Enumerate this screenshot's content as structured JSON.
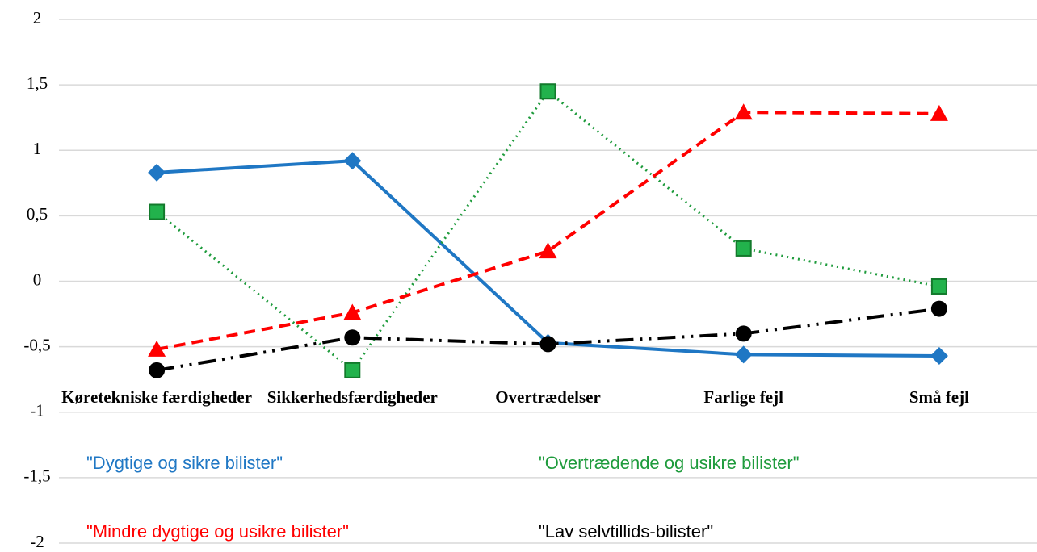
{
  "chart_data": {
    "type": "line",
    "categories": [
      "Køretekniske færdigheder",
      "Sikkerhedsfærdigheder",
      "Overtrædelser",
      "Farlige fejl",
      "Små fejl"
    ],
    "series": [
      {
        "name": "\"Dygtige og sikre bilister\"",
        "color": "#1f77c4",
        "marker": "diamond",
        "dash": "solid",
        "values": [
          0.83,
          0.92,
          -0.47,
          -0.56,
          -0.57
        ]
      },
      {
        "name": "\"Overtrædende og usikre bilister\"",
        "color": "#1e9b3c",
        "marker": "square",
        "dash": "dotted",
        "values": [
          0.53,
          -0.68,
          1.45,
          0.25,
          -0.04
        ]
      },
      {
        "name": "\"Mindre dygtige og usikre bilister\"",
        "color": "#ff0000",
        "marker": "triangle",
        "dash": "dashed",
        "values": [
          -0.52,
          -0.24,
          0.23,
          1.29,
          1.28
        ]
      },
      {
        "name": "\"Lav selvtillids-bilister\"",
        "color": "#000000",
        "marker": "circle",
        "dash": "dashdotdot",
        "values": [
          -0.68,
          -0.43,
          -0.48,
          -0.4,
          -0.21
        ]
      }
    ],
    "ylim": [
      -2,
      2
    ],
    "yticks": [
      -2,
      {
        "value": -1.5,
        "label": "-1,5"
      },
      -1,
      {
        "value": -0.5,
        "label": "-0,5"
      },
      0,
      {
        "value": 0.5,
        "label": "0,5"
      },
      1,
      {
        "value": 1.5,
        "label": "1,5"
      },
      2
    ],
    "grid": true
  }
}
